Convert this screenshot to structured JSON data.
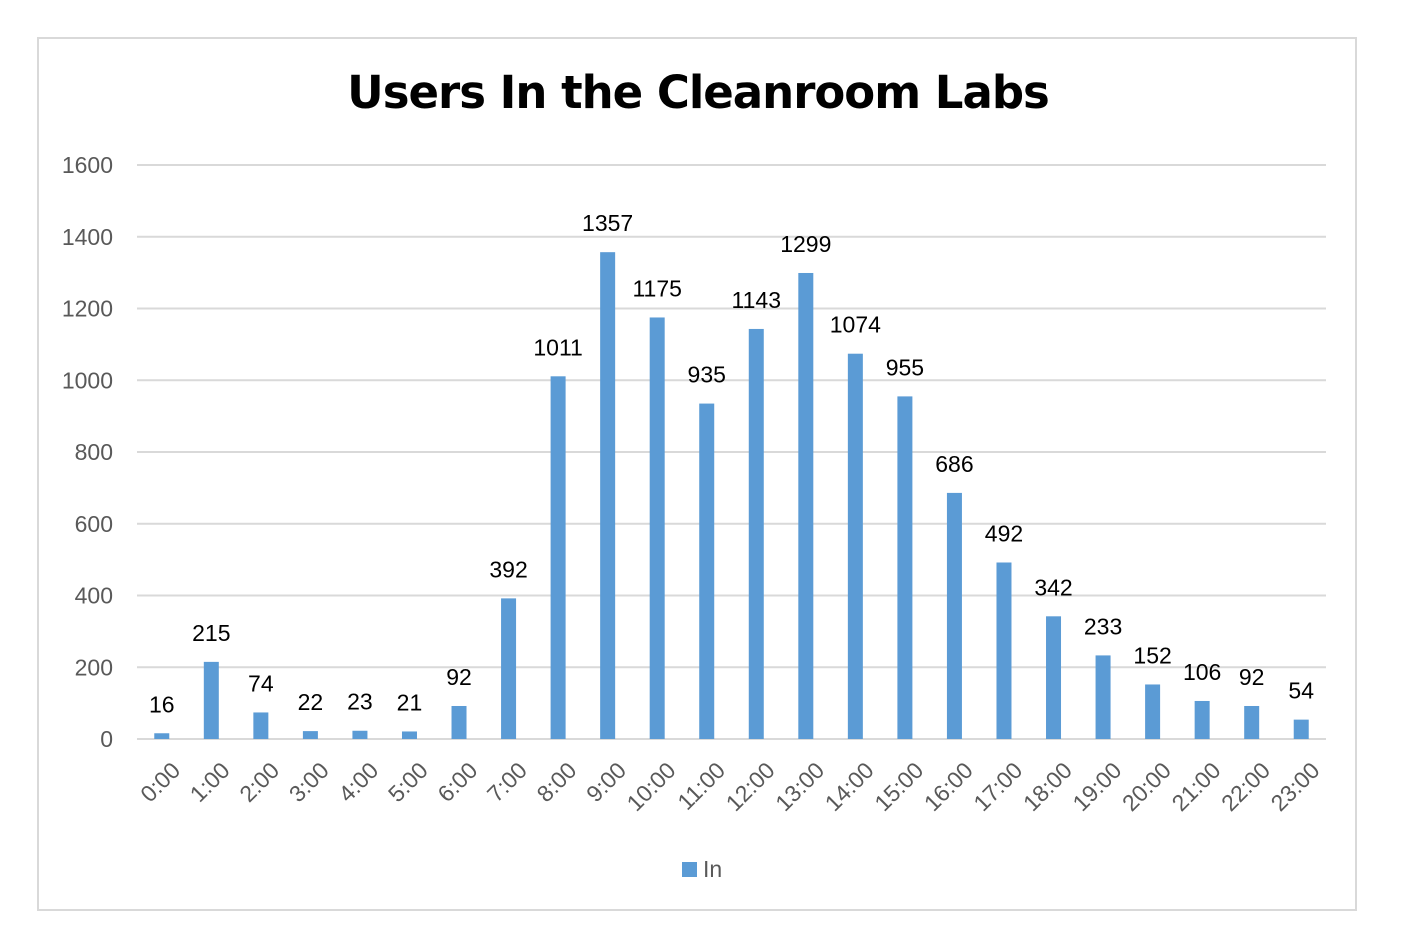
{
  "chart_data": {
    "type": "bar",
    "title": "Users In the Cleanroom Labs",
    "xlabel": "",
    "ylabel": "",
    "categories": [
      "0:00",
      "1:00",
      "2:00",
      "3:00",
      "4:00",
      "5:00",
      "6:00",
      "7:00",
      "8:00",
      "9:00",
      "10:00",
      "11:00",
      "12:00",
      "13:00",
      "14:00",
      "15:00",
      "16:00",
      "17:00",
      "18:00",
      "19:00",
      "20:00",
      "21:00",
      "22:00",
      "23:00"
    ],
    "series": [
      {
        "name": "In",
        "color": "#5b9bd5",
        "values": [
          16,
          215,
          74,
          22,
          23,
          21,
          92,
          392,
          1011,
          1357,
          1175,
          935,
          1143,
          1299,
          1074,
          955,
          686,
          492,
          342,
          233,
          152,
          106,
          92,
          54
        ]
      }
    ],
    "ylim": [
      0,
      1600
    ],
    "yticks": [
      0,
      200,
      400,
      600,
      800,
      1000,
      1200,
      1400,
      1600
    ],
    "grid": true,
    "legend_position": "bottom",
    "data_labels": true
  }
}
